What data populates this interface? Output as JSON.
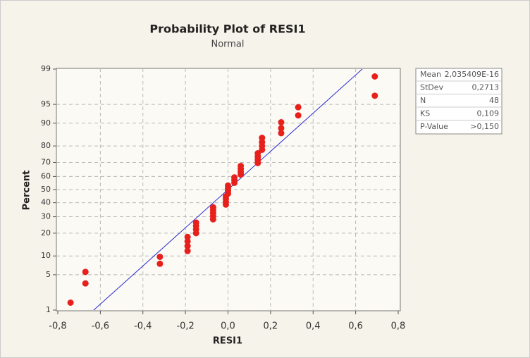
{
  "chart_data": {
    "type": "scatter",
    "title": "Probability Plot of RESI1",
    "subtitle": "Normal",
    "x_label": "RESI1",
    "y_label": "Percent",
    "y_scale": "normal-probability",
    "grid": true,
    "point_color": "#e8201c",
    "line_color": "#2a2ad0",
    "x": [
      -0.74,
      -0.67,
      -0.67,
      -0.32,
      -0.32,
      -0.19,
      -0.19,
      -0.19,
      -0.19,
      -0.15,
      -0.15,
      -0.15,
      -0.15,
      -0.07,
      -0.07,
      -0.07,
      -0.07,
      -0.07,
      -0.01,
      -0.01,
      -0.01,
      -0.01,
      0.0,
      0.0,
      0.0,
      0.0,
      0.03,
      0.03,
      0.03,
      0.06,
      0.06,
      0.06,
      0.06,
      0.14,
      0.14,
      0.14,
      0.14,
      0.16,
      0.16,
      0.16,
      0.16,
      0.25,
      0.25,
      0.25,
      0.33,
      0.33,
      0.69,
      0.69
    ],
    "values": [
      1.45,
      3.5,
      5.6,
      7.6,
      9.7,
      11.8,
      13.8,
      15.9,
      18.0,
      20.0,
      22.1,
      24.2,
      26.2,
      28.3,
      30.4,
      32.4,
      34.5,
      36.6,
      38.6,
      40.7,
      42.8,
      44.8,
      46.9,
      49.0,
      51.0,
      53.1,
      55.2,
      57.2,
      59.3,
      61.4,
      63.4,
      65.5,
      67.6,
      69.6,
      71.7,
      73.8,
      75.8,
      77.9,
      80.0,
      82.0,
      84.1,
      86.2,
      88.2,
      90.3,
      92.4,
      94.4,
      96.5,
      98.55
    ],
    "xlim": [
      -0.8,
      0.8
    ],
    "xticks": [
      {
        "value": -0.8,
        "label": "-0,8"
      },
      {
        "value": -0.6,
        "label": "-0,6"
      },
      {
        "value": -0.4,
        "label": "-0,4"
      },
      {
        "value": -0.2,
        "label": "-0,2"
      },
      {
        "value": 0,
        "label": "0,0"
      },
      {
        "value": 0.2,
        "label": "0,2"
      },
      {
        "value": 0.4,
        "label": "0,4"
      },
      {
        "value": 0.6,
        "label": "0,6"
      },
      {
        "value": 0.8,
        "label": "0,8"
      }
    ],
    "ylim": [
      1,
      99
    ],
    "yticks": [
      1,
      5,
      10,
      20,
      30,
      40,
      50,
      60,
      70,
      80,
      90,
      95,
      99
    ],
    "stats": {
      "rows": [
        {
          "label": "Mean",
          "value": {
            "value": 2.035409e-16,
            "label": "2,035409E-16"
          }
        },
        {
          "label": "StDev",
          "value": {
            "value": 0.2713,
            "label": "0,2713"
          }
        },
        {
          "label": "N",
          "value": 48
        },
        {
          "label": "KS",
          "value": {
            "value": 0.109,
            "label": "0,109"
          }
        },
        {
          "label": "P-Value",
          "value": ">0,150"
        }
      ]
    }
  }
}
